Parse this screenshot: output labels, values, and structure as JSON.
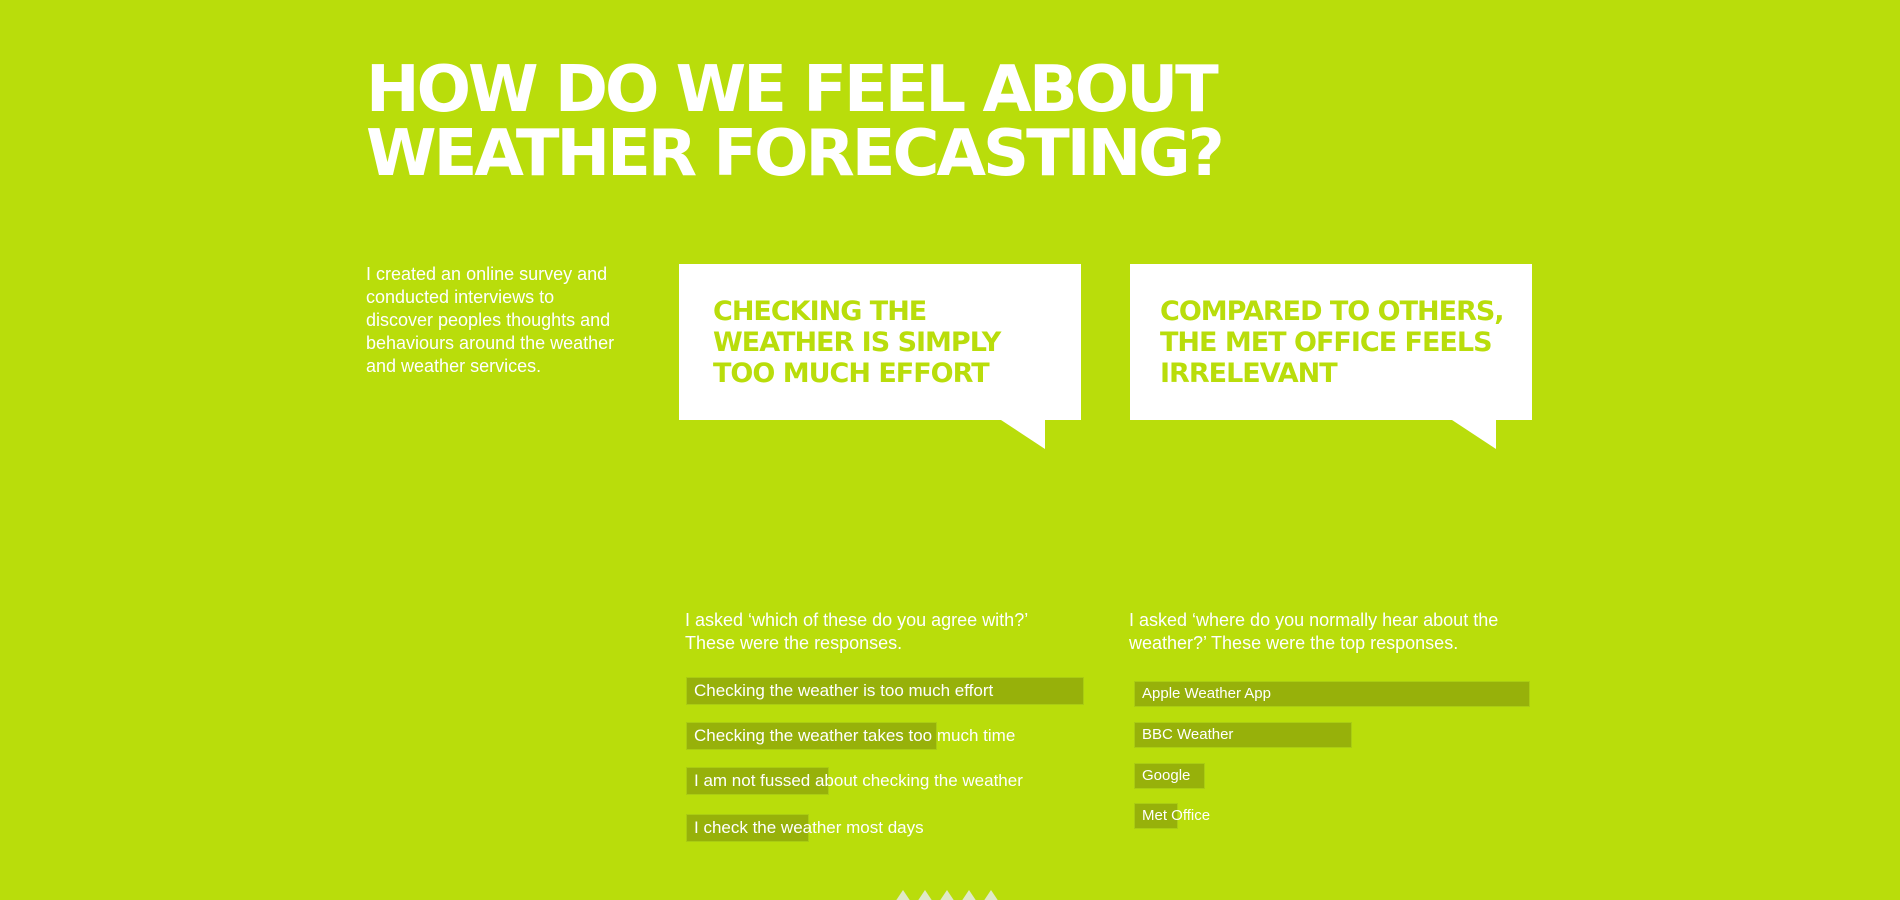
{
  "title": {
    "line1": "HOW DO WE FEEL ABOUT",
    "line2": "WEATHER FORECASTING?"
  },
  "intro": "I created an online survey and conducted interviews to discover peoples thoughts and behaviours around the weather and weather services.",
  "bubbles": [
    {
      "lines": [
        "CHECKING THE",
        "WEATHER IS SIMPLY",
        "TOO MUCH EFFORT"
      ]
    },
    {
      "lines": [
        "COMPARED TO OTHERS,",
        "THE MET OFFICE FEELS",
        "IRRELEVANT"
      ]
    }
  ],
  "survey_agree": {
    "question_lines": [
      "I asked ‘which of these do you agree with?’",
      "These were the responses."
    ],
    "items": [
      {
        "label": "Checking the weather is too much effort",
        "share": 1.0
      },
      {
        "label": "Checking the weather takes too much time",
        "share": 0.63
      },
      {
        "label": "I am not fussed about checking the weather",
        "share": 0.36
      },
      {
        "label": "I check the weather most days",
        "share": 0.31
      }
    ]
  },
  "survey_sources": {
    "question_lines": [
      "I asked ‘where do you normally hear about the",
      "weather?’ These were the top responses."
    ],
    "items": [
      {
        "label": "Apple Weather App",
        "share": 1.0
      },
      {
        "label": "BBC Weather",
        "share": 0.55
      },
      {
        "label": "Google",
        "share": 0.18
      },
      {
        "label": "Met Office",
        "share": 0.11
      }
    ]
  },
  "colors": {
    "background": "#b9dd0b",
    "bar": "#97b10a",
    "text": "#ffffff"
  }
}
